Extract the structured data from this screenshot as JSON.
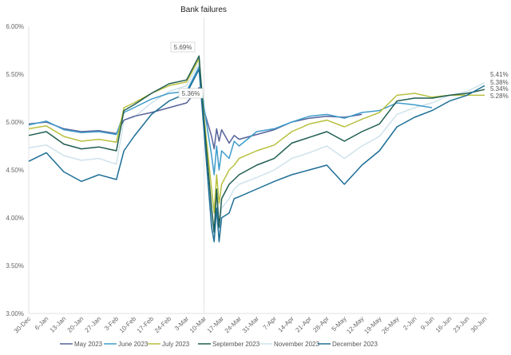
{
  "chart_data": {
    "type": "line",
    "title": "",
    "annotation": {
      "label": "Bank failures",
      "x": "10-Mar"
    },
    "xlabel": "",
    "ylabel": "",
    "ylim": [
      3.0,
      6.0
    ],
    "yticks": [
      "3.00%",
      "3.50%",
      "4.00%",
      "4.50%",
      "5.00%",
      "5.50%",
      "6.00%"
    ],
    "xtick_labels": [
      "30-Dec",
      "6-Jan",
      "13-Jan",
      "20-Jan",
      "27-Jan",
      "3-Feb",
      "10-Feb",
      "17-Feb",
      "24-Feb",
      "3-Mar",
      "10-Mar",
      "17-Mar",
      "24-Mar",
      "31-Mar",
      "7-Apr",
      "14-Apr",
      "21-Apr",
      "28-Apr",
      "5-May",
      "12-May",
      "19-May",
      "26-May",
      "2-Jun",
      "9-Jun",
      "16-Jun",
      "23-Jun",
      "30-Jun"
    ],
    "grid": false,
    "legend": "bottom",
    "x": [
      "30-Dec",
      "6-Jan",
      "13-Jan",
      "20-Jan",
      "27-Jan",
      "3-Feb",
      "6-Feb",
      "10-Feb",
      "17-Feb",
      "24-Feb",
      "3-Mar",
      "8-Mar",
      "10-Mar",
      "13-Mar",
      "14-Mar",
      "15-Mar",
      "16-Mar",
      "17-Mar",
      "20-Mar",
      "22-Mar",
      "24-Mar",
      "31-Mar",
      "7-Apr",
      "14-Apr",
      "21-Apr",
      "28-Apr",
      "5-May",
      "12-May",
      "19-May",
      "26-May",
      "2-Jun",
      "9-Jun",
      "16-Jun",
      "23-Jun",
      "30-Jun"
    ],
    "series": [
      {
        "name": "May 2023",
        "color": "#56639a",
        "values": [
          4.98,
          5.0,
          4.93,
          4.9,
          4.91,
          4.88,
          5.02,
          5.06,
          5.1,
          5.15,
          5.2,
          5.36,
          5.12,
          4.85,
          4.72,
          4.93,
          4.8,
          4.92,
          4.78,
          4.86,
          4.82,
          4.87,
          4.92,
          5.0,
          5.04,
          5.06,
          5.05,
          5.08,
          null,
          null,
          null,
          null,
          null,
          null,
          null
        ]
      },
      {
        "name": "June 2023",
        "color": "#3f9ccb",
        "values": [
          4.97,
          5.01,
          4.92,
          4.89,
          4.9,
          4.87,
          5.1,
          5.15,
          5.24,
          5.3,
          5.32,
          5.58,
          5.15,
          4.65,
          4.45,
          4.75,
          4.5,
          4.7,
          4.62,
          4.8,
          4.75,
          4.9,
          4.93,
          5.0,
          5.06,
          5.08,
          5.04,
          5.1,
          5.12,
          5.2,
          5.18,
          5.15,
          null,
          null,
          null
        ]
      },
      {
        "name": "July 2023",
        "color": "#b8c03e",
        "values": [
          4.93,
          4.96,
          4.85,
          4.8,
          4.82,
          4.79,
          5.15,
          5.2,
          5.3,
          5.38,
          5.42,
          5.66,
          5.05,
          4.3,
          4.05,
          4.45,
          4.15,
          4.35,
          4.5,
          4.55,
          4.62,
          4.7,
          4.76,
          4.9,
          4.98,
          5.02,
          4.95,
          5.03,
          5.1,
          5.28,
          5.3,
          5.26,
          5.28,
          5.28,
          5.28
        ]
      },
      {
        "name": "September 2023",
        "color": "#1f5d50",
        "values": [
          4.86,
          4.9,
          4.77,
          4.72,
          4.74,
          4.7,
          5.12,
          5.18,
          5.3,
          5.4,
          5.44,
          5.69,
          5.0,
          4.1,
          3.85,
          4.3,
          3.9,
          4.2,
          4.35,
          4.4,
          4.45,
          4.55,
          4.62,
          4.78,
          4.84,
          4.9,
          4.8,
          4.9,
          4.98,
          5.22,
          5.25,
          5.25,
          5.28,
          5.3,
          5.34
        ]
      },
      {
        "name": "November 2023",
        "color": "#cfe3ec",
        "values": [
          4.73,
          4.76,
          4.65,
          4.6,
          4.62,
          4.56,
          5.02,
          5.05,
          5.2,
          5.32,
          5.38,
          5.62,
          4.95,
          4.0,
          3.8,
          4.2,
          3.85,
          4.1,
          4.2,
          4.3,
          4.35,
          4.42,
          4.5,
          4.62,
          4.68,
          4.75,
          4.62,
          4.75,
          4.85,
          5.08,
          5.15,
          5.2,
          5.28,
          5.32,
          5.41
        ]
      },
      {
        "name": "December 2023",
        "color": "#1d6e96",
        "values": [
          4.59,
          4.68,
          4.48,
          4.38,
          4.45,
          4.4,
          4.7,
          4.85,
          5.08,
          5.22,
          5.3,
          5.55,
          4.9,
          3.9,
          3.75,
          4.1,
          3.75,
          4.0,
          4.05,
          4.2,
          4.22,
          4.3,
          4.38,
          4.45,
          4.5,
          4.55,
          4.35,
          4.55,
          4.7,
          4.95,
          5.05,
          5.12,
          5.22,
          5.28,
          5.38
        ]
      }
    ],
    "data_labels": [
      {
        "text": "5.69%",
        "series": "September 2023",
        "x": "8-Mar"
      },
      {
        "text": "5.36%",
        "series": "May 2023",
        "x": "8-Mar"
      },
      {
        "text": "5.41%",
        "series": "November 2023",
        "x": "30-Jun"
      },
      {
        "text": "5.38%",
        "series": "December 2023",
        "x": "30-Jun"
      },
      {
        "text": "5.34%",
        "series": "September 2023",
        "x": "30-Jun"
      },
      {
        "text": "5.28%",
        "series": "July 2023",
        "x": "30-Jun"
      }
    ]
  }
}
